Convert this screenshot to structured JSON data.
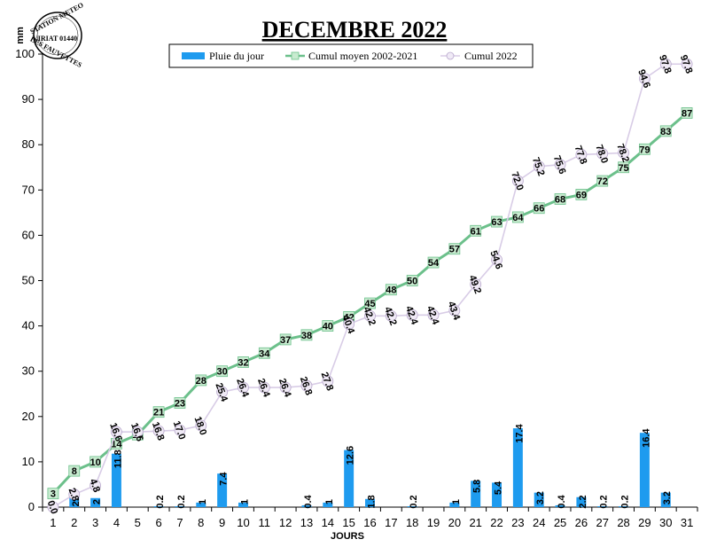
{
  "stamp": {
    "top_text": "STATION METEO",
    "middle_text": "VIRIAT 01440",
    "bottom_text": "LES FAUVETTES"
  },
  "colors": {
    "bar": "#1E9BEF",
    "mean_line": "#6CC08B",
    "mean_marker_fill": "#C8EBD0",
    "cum_line": "#D8CCE6",
    "cum_marker_fill": "#F0EAF6"
  },
  "chart_data": {
    "type": "bar+line",
    "title": "DECEMBRE 2022",
    "xlabel": "JOURS",
    "ylabel": "mm",
    "ylim": [
      0,
      100
    ],
    "ytick_step": 10,
    "yticks": [
      "0",
      "10",
      "20",
      "30",
      "40",
      "50",
      "60",
      "70",
      "80",
      "90",
      "100"
    ],
    "categories": [
      "1",
      "2",
      "3",
      "4",
      "5",
      "6",
      "7",
      "8",
      "9",
      "10",
      "11",
      "12",
      "13",
      "14",
      "15",
      "16",
      "17",
      "18",
      "19",
      "20",
      "21",
      "22",
      "23",
      "24",
      "25",
      "26",
      "27",
      "28",
      "29",
      "30",
      "31"
    ],
    "legend_placement": "top",
    "series": [
      {
        "name": "Pluie du jour",
        "type": "bar",
        "values": [
          null,
          2.8,
          2,
          11.8,
          null,
          0.2,
          0.2,
          1,
          7.4,
          1,
          null,
          null,
          0.4,
          1,
          12.6,
          1.8,
          null,
          0.2,
          null,
          1,
          5.8,
          5.4,
          17.4,
          3.2,
          0.4,
          2.2,
          0.2,
          0.2,
          16.4,
          3.2,
          null
        ],
        "labels": [
          "",
          "2.8",
          "2",
          "11.8",
          "",
          "0.2",
          "0.2",
          "1",
          "7.4",
          "1",
          "",
          "",
          "0.4",
          "1",
          "12.6",
          "1.8",
          "",
          "0.2",
          "",
          "1",
          "5.8",
          "5.4",
          "17.4",
          "3.2",
          "0.4",
          "2.2",
          "0.2",
          "0.2",
          "16.4",
          "3.2",
          ""
        ]
      },
      {
        "name": "Cumul moyen 2002-2021",
        "type": "line",
        "values": [
          3,
          8,
          10,
          14,
          16,
          21,
          23,
          28,
          30,
          32,
          34,
          37,
          38,
          40,
          42,
          45,
          48,
          50,
          54,
          57,
          61,
          63,
          64,
          66,
          68,
          69,
          72,
          75,
          79,
          83,
          87
        ],
        "labels": [
          "3",
          "8",
          "10",
          "14",
          "16",
          "21",
          "23",
          "28",
          "30",
          "32",
          "34",
          "37",
          "38",
          "40",
          "42",
          "45",
          "48",
          "50",
          "54",
          "57",
          "61",
          "63",
          "64",
          "66",
          "68",
          "69",
          "72",
          "75",
          "79",
          "83",
          "87"
        ]
      },
      {
        "name": "Cumul 2022",
        "type": "line",
        "values": [
          0.0,
          2.8,
          4.8,
          16.6,
          16.6,
          16.8,
          17.0,
          18.0,
          25.4,
          26.4,
          26.4,
          26.4,
          26.8,
          27.8,
          40.4,
          42.2,
          42.2,
          42.4,
          42.4,
          43.4,
          49.2,
          54.6,
          72.0,
          75.2,
          75.6,
          77.8,
          78.0,
          78.2,
          94.6,
          97.8,
          97.8
        ],
        "labels": [
          "0.0",
          "2.8",
          "4.8",
          "16.6",
          "16.6",
          "16.8",
          "17.0",
          "18.0",
          "25.4",
          "26.4",
          "26.4",
          "26.4",
          "26.8",
          "27.8",
          "40.4",
          "42.2",
          "42.2",
          "42.4",
          "42.4",
          "43.4",
          "49.2",
          "54.6",
          "72.0",
          "75.2",
          "75.6",
          "77.8",
          "78.0",
          "78.2",
          "94.6",
          "97.8",
          "97.8"
        ]
      }
    ]
  }
}
